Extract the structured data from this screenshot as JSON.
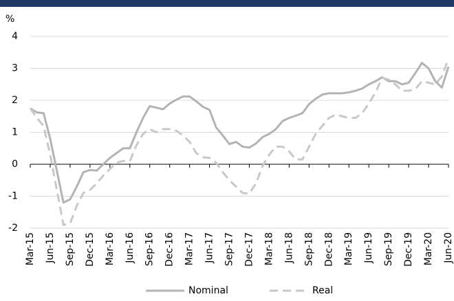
{
  "chart_data": {
    "type": "line",
    "y_label": "%",
    "categories": [
      "Mar-15",
      null,
      null,
      "Jun-15",
      null,
      null,
      "Sep-15",
      null,
      null,
      "Dec-15",
      null,
      null,
      "Mar-16",
      null,
      null,
      "Jun-16",
      null,
      null,
      "Sep-16",
      null,
      null,
      "Dec-16",
      null,
      null,
      "Mar-17",
      null,
      null,
      "Jun-17",
      null,
      null,
      "Sep-17",
      null,
      null,
      "Dec-17",
      null,
      null,
      "Mar-18",
      null,
      null,
      "Jun-18",
      null,
      null,
      "Sep-18",
      null,
      null,
      "Dec-18",
      null,
      null,
      "Mar-19",
      null,
      null,
      "Jun-19",
      null,
      null,
      "Sep-19",
      null,
      null,
      "Dec-19",
      null,
      null,
      "Mar-20",
      null,
      null,
      "Jun-20"
    ],
    "series": [
      {
        "name": "Nominal",
        "color": "#b3b3b3",
        "dashed": false,
        "values": [
          1.75,
          1.62,
          1.6,
          0.8,
          -0.2,
          -1.2,
          -1.1,
          -0.7,
          -0.25,
          -0.18,
          -0.2,
          0.0,
          0.2,
          0.35,
          0.5,
          0.5,
          1.0,
          1.45,
          1.82,
          1.77,
          1.72,
          1.9,
          2.02,
          2.12,
          2.12,
          1.97,
          1.8,
          1.7,
          1.15,
          0.9,
          0.63,
          0.7,
          0.55,
          0.52,
          0.65,
          0.85,
          0.95,
          1.1,
          1.35,
          1.45,
          1.52,
          1.6,
          1.88,
          2.05,
          2.18,
          2.22,
          2.22,
          2.22,
          2.25,
          2.3,
          2.37,
          2.5,
          2.6,
          2.72,
          2.6,
          2.6,
          2.5,
          2.55,
          2.85,
          3.17,
          3.0,
          2.6,
          2.4,
          3.05
        ]
      },
      {
        "name": "Real",
        "color": "#c8c8c8",
        "dashed": true,
        "values": [
          1.75,
          1.45,
          1.2,
          0.3,
          -0.8,
          -1.9,
          -1.85,
          -1.3,
          -0.9,
          -0.8,
          -0.6,
          -0.35,
          -0.15,
          0.05,
          0.1,
          0.1,
          0.6,
          0.95,
          1.1,
          1.0,
          1.1,
          1.1,
          1.05,
          0.9,
          0.7,
          0.35,
          0.22,
          0.2,
          0.05,
          -0.25,
          -0.5,
          -0.7,
          -0.9,
          -0.92,
          -0.6,
          -0.05,
          0.3,
          0.55,
          0.55,
          0.4,
          0.15,
          0.15,
          0.55,
          0.95,
          1.2,
          1.45,
          1.55,
          1.5,
          1.45,
          1.45,
          1.6,
          1.9,
          2.25,
          2.7,
          2.65,
          2.5,
          2.3,
          2.3,
          2.35,
          2.6,
          2.55,
          2.5,
          2.75,
          3.3
        ]
      }
    ],
    "ylim": [
      -2,
      4
    ],
    "yticks": [
      -2,
      -1,
      0,
      1,
      2,
      3,
      4
    ],
    "grid": true
  }
}
